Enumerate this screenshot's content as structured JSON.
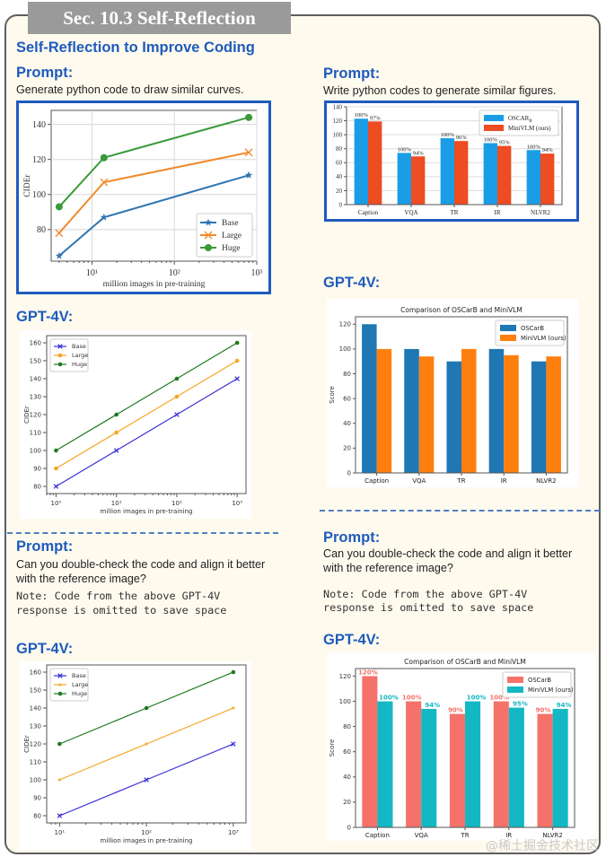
{
  "section_banner": "Sec. 10.3 Self-Reflection",
  "title": "Self-Reflection to Improve Coding",
  "left": {
    "prompt1": {
      "heading": "Prompt:",
      "text": "Generate python code to draw similar curves."
    },
    "gpt1_heading": "GPT-4V:",
    "prompt2": {
      "heading": "Prompt:",
      "text_line1": "Can you double-check the code and align it better",
      "text_line2": "with the reference image?",
      "note_line1": "Note: Code from the above GPT-4V",
      "note_line2": "response is omitted to save space"
    },
    "gpt2_heading": "GPT-4V:"
  },
  "right": {
    "prompt1": {
      "heading": "Prompt:",
      "text": "Write python codes to generate similar figures."
    },
    "gpt1_heading": "GPT-4V:",
    "prompt2": {
      "heading": "Prompt:",
      "text_line1": "Can you double-check the code and align it better",
      "text_line2": "with the reference image?",
      "note_line1": "Note: Code from the above GPT-4V",
      "note_line2": "response is omitted to save space"
    },
    "gpt2_heading": "GPT-4V:"
  },
  "watermark": "@稀土掘金技术社区",
  "chart_data": [
    {
      "id": "ref_curves",
      "type": "line",
      "title": "",
      "xlabel": "million images in pre-training",
      "ylabel": "CIDEr",
      "xscale": "log",
      "xlim": [
        3.2,
        1000
      ],
      "ylim": [
        62,
        148
      ],
      "xticks": [
        {
          "v": 10,
          "label": "10¹"
        },
        {
          "v": 100,
          "label": "10²"
        },
        {
          "v": 1000,
          "label": "10³"
        }
      ],
      "yticks": [
        80,
        100,
        120,
        140
      ],
      "grid": true,
      "legend": "bottom-right",
      "x": [
        4,
        14,
        800
      ],
      "series": [
        {
          "name": "Base",
          "values": [
            65,
            87,
            111
          ],
          "color": "#2f76b3",
          "marker": "star"
        },
        {
          "name": "Large",
          "values": [
            78,
            107,
            124
          ],
          "color": "#f08a2c",
          "marker": "x"
        },
        {
          "name": "Huge",
          "values": [
            93,
            121,
            144
          ],
          "color": "#3a9a3a",
          "marker": "circle"
        }
      ]
    },
    {
      "id": "ref_bars",
      "type": "bar",
      "title": "",
      "xlabel": "",
      "ylabel": "",
      "categories": [
        "Caption",
        "VQA",
        "TR",
        "IR",
        "NLVR2"
      ],
      "ylim": [
        0,
        140
      ],
      "yticks": [
        0,
        20,
        40,
        60,
        80,
        100,
        120,
        140
      ],
      "grid": true,
      "legend": "top-right",
      "series": [
        {
          "name": "OSCAR_B",
          "values": [
            123,
            74,
            95,
            88,
            78
          ],
          "labels": [
            "100%",
            "100%",
            "100%",
            "100%",
            "100%"
          ],
          "color": "#1a9de6"
        },
        {
          "name": "MiniVLM (ours)",
          "values": [
            119,
            69,
            91,
            84,
            73
          ],
          "labels": [
            "97%",
            "94%",
            "96%",
            "95%",
            "94%"
          ],
          "color": "#ee4c22"
        }
      ]
    },
    {
      "id": "gpt_curves_1",
      "type": "line",
      "title": "",
      "xlabel": "million images in pre-training",
      "ylabel": "CIDEr",
      "xscale": "log",
      "xlim": [
        0.7,
        1400
      ],
      "ylim": [
        76,
        164
      ],
      "xticks": [
        {
          "v": 1,
          "label": "10⁰"
        },
        {
          "v": 10,
          "label": "10¹"
        },
        {
          "v": 100,
          "label": "10²"
        },
        {
          "v": 1000,
          "label": "10³"
        }
      ],
      "yticks": [
        80,
        90,
        100,
        110,
        120,
        130,
        140,
        150,
        160
      ],
      "grid": false,
      "legend": "top-left",
      "x": [
        1,
        10,
        100,
        1000
      ],
      "series": [
        {
          "name": "Base",
          "values": [
            80,
            100,
            120,
            140
          ],
          "color": "#3a2fd6",
          "marker": "x"
        },
        {
          "name": "Large",
          "values": [
            90,
            110,
            130,
            150
          ],
          "color": "#f5a623",
          "marker": "circle"
        },
        {
          "name": "Huge",
          "values": [
            100,
            120,
            140,
            160
          ],
          "color": "#1e7a1e",
          "marker": "circle"
        }
      ]
    },
    {
      "id": "gpt_bars_1",
      "type": "bar",
      "title": "Comparison of OSCarB and MiniVLM",
      "xlabel": "",
      "ylabel": "Score",
      "categories": [
        "Caption",
        "VQA",
        "TR",
        "IR",
        "NLVR2"
      ],
      "ylim": [
        0,
        126
      ],
      "yticks": [
        0,
        20,
        40,
        60,
        80,
        100,
        120
      ],
      "grid": false,
      "legend": "top-right",
      "series": [
        {
          "name": "OSCarB",
          "values": [
            120,
            100,
            90,
            100,
            90
          ],
          "color": "#1f77b4"
        },
        {
          "name": "MiniVLM (ours)",
          "values": [
            100,
            94,
            100,
            95,
            94
          ],
          "color": "#ff7f0e"
        }
      ]
    },
    {
      "id": "gpt_curves_2",
      "type": "line",
      "title": "",
      "xlabel": "million images in pre-training",
      "ylabel": "CIDEr",
      "xscale": "log",
      "xlim": [
        7.1,
        1400
      ],
      "ylim": [
        76,
        164
      ],
      "xticks": [
        {
          "v": 10,
          "label": "10¹"
        },
        {
          "v": 100,
          "label": "10²"
        },
        {
          "v": 1000,
          "label": "10³"
        }
      ],
      "yticks": [
        80,
        90,
        100,
        110,
        120,
        130,
        140,
        150,
        160
      ],
      "grid": false,
      "legend": "top-left",
      "x": [
        10,
        100,
        1000
      ],
      "series": [
        {
          "name": "Base",
          "values": [
            80,
            100,
            120
          ],
          "color": "#3a2fd6",
          "marker": "x"
        },
        {
          "name": "Large",
          "values": [
            100,
            120,
            140
          ],
          "color": "#f5a623",
          "marker": "star"
        },
        {
          "name": "Huge",
          "values": [
            120,
            140,
            160
          ],
          "color": "#1e7a1e",
          "marker": "circle"
        }
      ]
    },
    {
      "id": "gpt_bars_2",
      "type": "bar",
      "title": "Comparison of OSCarB and MiniVLM",
      "xlabel": "",
      "ylabel": "Score",
      "categories": [
        "Caption",
        "VQA",
        "TR",
        "IR",
        "NLVR2"
      ],
      "ylim": [
        0,
        126
      ],
      "yticks": [
        0,
        20,
        40,
        60,
        80,
        100,
        120
      ],
      "grid": false,
      "legend": "top-right",
      "series": [
        {
          "name": "OSCarB",
          "values": [
            120,
            100,
            90,
            100,
            90
          ],
          "labels": [
            "120%",
            "100%",
            "90%",
            "100%",
            "90%"
          ],
          "color": "#f4726a"
        },
        {
          "name": "MiniVLM (ours)",
          "values": [
            100,
            94,
            100,
            95,
            94
          ],
          "labels": [
            "100%",
            "94%",
            "100%",
            "95%",
            "94%"
          ],
          "color": "#14b8c4"
        }
      ]
    }
  ]
}
